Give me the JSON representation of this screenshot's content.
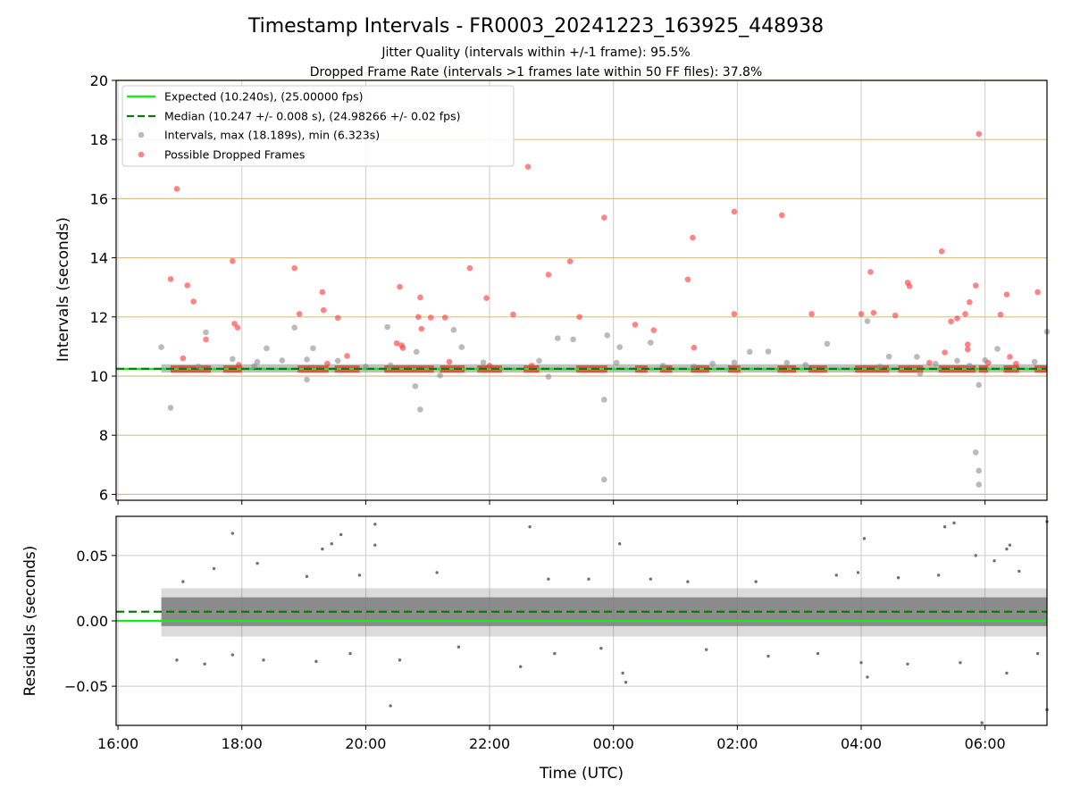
{
  "figure": {
    "title": "Timestamp Intervals - FR0003_20241223_163925_448938",
    "subtitle_1": "Jitter Quality (intervals within +/-1 frame): 95.5%",
    "subtitle_2": "Dropped Frame Rate (intervals >1 frames late within 50 FF files): 37.8%",
    "xlabel": "Time (UTC)",
    "x_ticks": [
      "16:00",
      "18:00",
      "20:00",
      "22:00",
      "00:00",
      "02:00",
      "04:00",
      "06:00"
    ]
  },
  "colors": {
    "expected": "#22e622",
    "median": "#0a7a0a",
    "intervals": "#8c8c8c",
    "dropped": "#ff3333",
    "reference_lines": "#d8c08a",
    "grid": "#cccccc",
    "residuals": "#707070"
  },
  "chart_data": [
    {
      "type": "scatter",
      "ylabel": "Intervals (seconds)",
      "ylim": [
        5.8,
        20.0
      ],
      "xlim_hours": [
        15.97,
        31.0
      ],
      "y_ticks": [
        "6",
        "8",
        "10",
        "12",
        "14",
        "16",
        "18",
        "20"
      ],
      "reference_lines_y": [
        6,
        8,
        10,
        12,
        14,
        16,
        18,
        20
      ],
      "legend": {
        "placement": "upper-left",
        "entries": [
          "Expected (10.240s), (25.00000 fps)",
          "Median (10.247 +/- 0.008 s), (24.98266 +/- 0.02 fps)",
          "Intervals, max (18.189s), min (6.323s)",
          "Possible Dropped Frames"
        ]
      },
      "expected": 10.24,
      "median": 10.247,
      "series": [
        {
          "name": "Intervals, max (18.189s), min (6.323s)",
          "points": [
            [
              16.7,
              10.98
            ],
            [
              16.85,
              8.93
            ],
            [
              17.3,
              10.32
            ],
            [
              17.42,
              11.48
            ],
            [
              17.85,
              10.58
            ],
            [
              18.2,
              10.34
            ],
            [
              18.25,
              10.48
            ],
            [
              18.4,
              10.94
            ],
            [
              18.65,
              10.53
            ],
            [
              18.85,
              11.64
            ],
            [
              19.05,
              9.88
            ],
            [
              19.05,
              10.56
            ],
            [
              19.15,
              10.94
            ],
            [
              19.55,
              10.52
            ],
            [
              20.0,
              10.32
            ],
            [
              20.35,
              11.66
            ],
            [
              20.4,
              10.36
            ],
            [
              20.8,
              9.66
            ],
            [
              20.82,
              10.82
            ],
            [
              20.88,
              8.87
            ],
            [
              21.2,
              10.02
            ],
            [
              21.42,
              11.56
            ],
            [
              21.55,
              10.98
            ],
            [
              21.9,
              10.46
            ],
            [
              22.8,
              10.52
            ],
            [
              22.95,
              9.98
            ],
            [
              23.1,
              11.28
            ],
            [
              23.35,
              11.24
            ],
            [
              23.9,
              11.38
            ],
            [
              23.85,
              9.2
            ],
            [
              23.85,
              6.5
            ],
            [
              24.05,
              10.45
            ],
            [
              24.1,
              10.98
            ],
            [
              24.6,
              11.13
            ],
            [
              24.8,
              10.35
            ],
            [
              25.3,
              10.32
            ],
            [
              25.6,
              10.42
            ],
            [
              25.95,
              10.46
            ],
            [
              26.2,
              10.82
            ],
            [
              26.5,
              10.83
            ],
            [
              26.8,
              10.45
            ],
            [
              27.1,
              10.38
            ],
            [
              27.45,
              11.09
            ],
            [
              28.1,
              11.86
            ],
            [
              28.3,
              10.32
            ],
            [
              28.45,
              10.66
            ],
            [
              28.9,
              10.65
            ],
            [
              28.95,
              10.08
            ],
            [
              29.2,
              10.42
            ],
            [
              29.55,
              10.52
            ],
            [
              29.75,
              10.35
            ],
            [
              29.85,
              7.42
            ],
            [
              29.9,
              6.8
            ],
            [
              29.9,
              6.33
            ],
            [
              29.9,
              9.7
            ],
            [
              30.0,
              10.54
            ],
            [
              30.2,
              10.92
            ],
            [
              30.8,
              10.48
            ],
            [
              31.0,
              11.5
            ]
          ]
        },
        {
          "name": "Possible Dropped Frames",
          "points": [
            [
              16.85,
              13.28
            ],
            [
              16.95,
              16.33
            ],
            [
              17.05,
              10.6
            ],
            [
              17.12,
              13.07
            ],
            [
              17.22,
              12.52
            ],
            [
              17.42,
              11.24
            ],
            [
              17.85,
              13.89
            ],
            [
              17.88,
              11.77
            ],
            [
              17.93,
              11.64
            ],
            [
              17.95,
              10.38
            ],
            [
              18.85,
              13.65
            ],
            [
              18.93,
              12.1
            ],
            [
              19.3,
              12.84
            ],
            [
              19.32,
              12.23
            ],
            [
              19.38,
              10.42
            ],
            [
              19.55,
              11.97
            ],
            [
              19.7,
              10.68
            ],
            [
              20.5,
              11.11
            ],
            [
              20.55,
              13.02
            ],
            [
              20.58,
              11.04
            ],
            [
              20.6,
              10.95
            ],
            [
              20.85,
              12.0
            ],
            [
              20.88,
              12.66
            ],
            [
              20.9,
              11.6
            ],
            [
              21.05,
              11.98
            ],
            [
              21.28,
              11.98
            ],
            [
              21.35,
              10.48
            ],
            [
              21.68,
              13.65
            ],
            [
              21.95,
              12.64
            ],
            [
              22.0,
              10.35
            ],
            [
              22.38,
              12.08
            ],
            [
              22.62,
              17.08
            ],
            [
              22.68,
              10.35
            ],
            [
              22.95,
              13.43
            ],
            [
              23.3,
              13.88
            ],
            [
              23.45,
              12.0
            ],
            [
              23.85,
              15.36
            ],
            [
              24.35,
              11.74
            ],
            [
              24.65,
              11.55
            ],
            [
              25.2,
              13.27
            ],
            [
              25.28,
              14.68
            ],
            [
              25.3,
              10.96
            ],
            [
              25.95,
              15.56
            ],
            [
              25.95,
              12.1
            ],
            [
              26.72,
              15.44
            ],
            [
              27.2,
              12.1
            ],
            [
              28.0,
              12.1
            ],
            [
              28.15,
              13.52
            ],
            [
              28.2,
              12.14
            ],
            [
              28.55,
              12.05
            ],
            [
              28.75,
              13.16
            ],
            [
              28.78,
              13.04
            ],
            [
              29.1,
              10.45
            ],
            [
              29.3,
              14.22
            ],
            [
              29.35,
              10.8
            ],
            [
              29.45,
              11.85
            ],
            [
              29.55,
              11.95
            ],
            [
              29.68,
              12.1
            ],
            [
              29.72,
              11.07
            ],
            [
              29.75,
              12.5
            ],
            [
              29.72,
              10.9
            ],
            [
              29.85,
              13.06
            ],
            [
              29.9,
              18.19
            ],
            [
              30.05,
              10.45
            ],
            [
              30.25,
              12.08
            ],
            [
              30.35,
              12.76
            ],
            [
              30.4,
              10.65
            ],
            [
              30.5,
              10.42
            ],
            [
              30.85,
              12.84
            ]
          ]
        }
      ]
    },
    {
      "type": "scatter",
      "ylabel": "Residuals (seconds)",
      "ylim": [
        -0.08,
        0.08
      ],
      "xlim_hours": [
        15.97,
        31.0
      ],
      "y_ticks": [
        "−0.05",
        "0.00",
        "0.05"
      ],
      "expected": 0.0,
      "median": 0.007,
      "series": [
        {
          "name": "",
          "points": [
            [
              17.85,
              0.067
            ],
            [
              18.25,
              0.044
            ],
            [
              19.3,
              0.055
            ],
            [
              19.45,
              0.059
            ],
            [
              19.6,
              0.066
            ],
            [
              20.15,
              0.074
            ],
            [
              20.15,
              0.058
            ],
            [
              20.4,
              -0.065
            ],
            [
              22.65,
              0.072
            ],
            [
              24.1,
              0.059
            ],
            [
              24.15,
              -0.04
            ],
            [
              24.2,
              -0.047
            ],
            [
              28.05,
              0.063
            ],
            [
              28.1,
              -0.043
            ],
            [
              29.35,
              0.072
            ],
            [
              29.5,
              0.075
            ],
            [
              29.85,
              0.05
            ],
            [
              29.95,
              -0.078
            ],
            [
              30.15,
              0.046
            ],
            [
              30.4,
              0.058
            ],
            [
              30.35,
              0.055
            ],
            [
              31.0,
              0.076
            ],
            [
              31.0,
              -0.068
            ],
            [
              16.95,
              -0.03
            ],
            [
              17.4,
              -0.033
            ],
            [
              17.85,
              -0.026
            ],
            [
              18.35,
              -0.03
            ],
            [
              19.2,
              -0.031
            ],
            [
              19.75,
              -0.025
            ],
            [
              20.55,
              -0.03
            ],
            [
              21.5,
              -0.02
            ],
            [
              22.5,
              -0.035
            ],
            [
              23.05,
              -0.025
            ],
            [
              23.8,
              -0.021
            ],
            [
              25.5,
              -0.022
            ],
            [
              26.5,
              -0.027
            ],
            [
              27.3,
              -0.025
            ],
            [
              28.0,
              -0.032
            ],
            [
              28.75,
              -0.033
            ],
            [
              29.6,
              -0.032
            ],
            [
              30.35,
              -0.04
            ],
            [
              30.85,
              -0.025
            ],
            [
              17.05,
              0.03
            ],
            [
              17.55,
              0.04
            ],
            [
              19.05,
              0.034
            ],
            [
              19.9,
              0.035
            ],
            [
              21.15,
              0.037
            ],
            [
              22.95,
              0.032
            ],
            [
              23.6,
              0.032
            ],
            [
              24.6,
              0.032
            ],
            [
              25.2,
              0.03
            ],
            [
              26.3,
              0.03
            ],
            [
              27.6,
              0.035
            ],
            [
              27.95,
              0.037
            ],
            [
              28.6,
              0.033
            ],
            [
              29.25,
              0.035
            ],
            [
              30.55,
              0.038
            ]
          ]
        }
      ]
    }
  ]
}
